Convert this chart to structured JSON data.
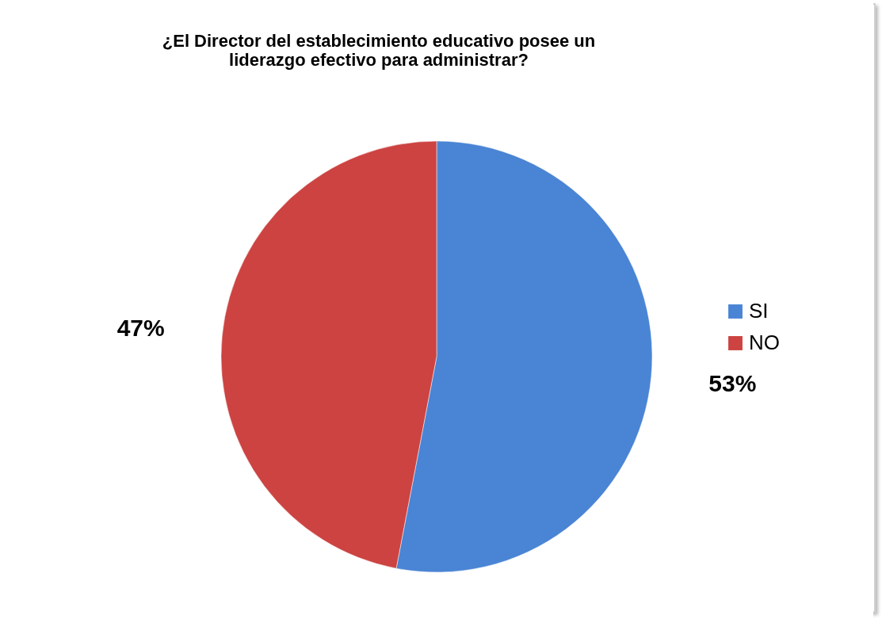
{
  "chart_data": {
    "type": "pie",
    "title": "¿El Director del establecimiento educativo posee  un liderazgo efectivo para administrar?",
    "categories": [
      "SI",
      "NO"
    ],
    "values": [
      53,
      47
    ],
    "colors": [
      "#4a84d4",
      "#cc4341"
    ],
    "value_labels": [
      "53%",
      "47%"
    ],
    "legend": "right"
  }
}
